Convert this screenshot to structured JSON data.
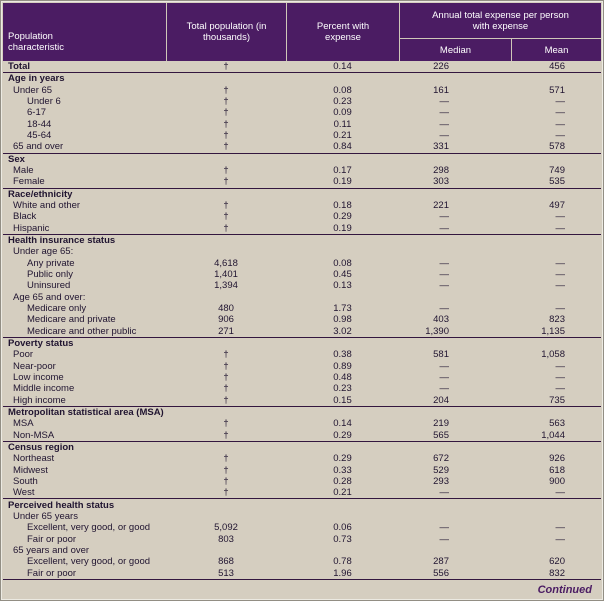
{
  "page": {
    "continued_label": "Continued"
  },
  "table": {
    "header": {
      "population_characteristic": "Population characteristic",
      "total_population": "Total population (in thousands)",
      "percent_with_expense": "Percent with expense",
      "expense_group": "Annual total expense per person with expense",
      "median": "Median",
      "mean": "Mean"
    },
    "symbols": {
      "suppressed": "—",
      "footnote_dagger": "†"
    },
    "colors": {
      "header_bg": "#4b1c63",
      "body_bg": "#d5cec0",
      "text": "#201430",
      "rule": "#33173f"
    },
    "sections": [
      {
        "rows": [
          {
            "type": "data",
            "bold": true,
            "indent": 0,
            "label": "Total",
            "total": "†",
            "percent": "0.14",
            "median": "226",
            "mean": "456"
          }
        ]
      },
      {
        "rows": [
          {
            "type": "section",
            "indent": 0,
            "label": "Age in years"
          },
          {
            "type": "data",
            "indent": 1,
            "label": "Under 65",
            "total": "†",
            "percent": "0.08",
            "median": "161",
            "mean": "571"
          },
          {
            "type": "data",
            "indent": 2,
            "label": "Under 6",
            "total": "†",
            "percent": "0.23",
            "median": "—",
            "mean": "—"
          },
          {
            "type": "data",
            "indent": 2,
            "label": "6-17",
            "total": "†",
            "percent": "0.09",
            "median": "—",
            "mean": "—"
          },
          {
            "type": "data",
            "indent": 2,
            "label": "18-44",
            "total": "†",
            "percent": "0.11",
            "median": "—",
            "mean": "—"
          },
          {
            "type": "data",
            "indent": 2,
            "label": "45-64",
            "total": "†",
            "percent": "0.21",
            "median": "—",
            "mean": "—"
          },
          {
            "type": "data",
            "indent": 1,
            "label": "65 and over",
            "total": "†",
            "percent": "0.84",
            "median": "331",
            "mean": "578"
          }
        ]
      },
      {
        "rows": [
          {
            "type": "section",
            "indent": 0,
            "label": "Sex"
          },
          {
            "type": "data",
            "indent": 1,
            "label": "Male",
            "total": "†",
            "percent": "0.17",
            "median": "298",
            "mean": "749"
          },
          {
            "type": "data",
            "indent": 1,
            "label": "Female",
            "total": "†",
            "percent": "0.19",
            "median": "303",
            "mean": "535"
          }
        ]
      },
      {
        "rows": [
          {
            "type": "section",
            "indent": 0,
            "label": "Race/ethnicity"
          },
          {
            "type": "data",
            "indent": 1,
            "label": "White and other",
            "total": "†",
            "percent": "0.18",
            "median": "221",
            "mean": "497"
          },
          {
            "type": "data",
            "indent": 1,
            "label": "Black",
            "total": "†",
            "percent": "0.29",
            "median": "—",
            "mean": "—"
          },
          {
            "type": "data",
            "indent": 1,
            "label": "Hispanic",
            "total": "†",
            "percent": "0.19",
            "median": "—",
            "mean": "—"
          }
        ]
      },
      {
        "rows": [
          {
            "type": "section",
            "indent": 0,
            "label": "Health insurance status"
          },
          {
            "type": "sub",
            "indent": 1,
            "label": "Under age 65:"
          },
          {
            "type": "data",
            "indent": 2,
            "label": "Any private",
            "total": "4,618",
            "percent": "0.08",
            "median": "—",
            "mean": "—"
          },
          {
            "type": "data",
            "indent": 2,
            "label": "Public only",
            "total": "1,401",
            "percent": "0.45",
            "median": "—",
            "mean": "—"
          },
          {
            "type": "data",
            "indent": 2,
            "label": "Uninsured",
            "total": "1,394",
            "percent": "0.13",
            "median": "—",
            "mean": "—"
          },
          {
            "type": "sub",
            "indent": 1,
            "label": "Age 65 and over:"
          },
          {
            "type": "data",
            "indent": 2,
            "label": "Medicare only",
            "total": "480",
            "percent": "1.73",
            "median": "—",
            "mean": "—"
          },
          {
            "type": "data",
            "indent": 2,
            "label": "Medicare and private",
            "total": "906",
            "percent": "0.98",
            "median": "403",
            "mean": "823"
          },
          {
            "type": "data",
            "indent": 2,
            "label": "Medicare and other public",
            "total": "271",
            "percent": "3.02",
            "median": "1,390",
            "mean": "1,135"
          }
        ]
      },
      {
        "rows": [
          {
            "type": "section",
            "indent": 0,
            "label": "Poverty status"
          },
          {
            "type": "data",
            "indent": 1,
            "label": "Poor",
            "total": "†",
            "percent": "0.38",
            "median": "581",
            "mean": "1,058"
          },
          {
            "type": "data",
            "indent": 1,
            "label": "Near-poor",
            "total": "†",
            "percent": "0.89",
            "median": "—",
            "mean": "—"
          },
          {
            "type": "data",
            "indent": 1,
            "label": "Low income",
            "total": "†",
            "percent": "0.48",
            "median": "—",
            "mean": "—"
          },
          {
            "type": "data",
            "indent": 1,
            "label": "Middle income",
            "total": "†",
            "percent": "0.23",
            "median": "—",
            "mean": "—"
          },
          {
            "type": "data",
            "indent": 1,
            "label": "High income",
            "total": "†",
            "percent": "0.15",
            "median": "204",
            "mean": "735"
          }
        ]
      },
      {
        "rows": [
          {
            "type": "section",
            "indent": 0,
            "label": "Metropolitan statistical area (MSA)"
          },
          {
            "type": "data",
            "indent": 1,
            "label": "MSA",
            "total": "†",
            "percent": "0.14",
            "median": "219",
            "mean": "563"
          },
          {
            "type": "data",
            "indent": 1,
            "label": "Non-MSA",
            "total": "†",
            "percent": "0.29",
            "median": "565",
            "mean": "1,044"
          }
        ]
      },
      {
        "rows": [
          {
            "type": "section",
            "indent": 0,
            "label": "Census region"
          },
          {
            "type": "data",
            "indent": 1,
            "label": "Northeast",
            "total": "†",
            "percent": "0.29",
            "median": "672",
            "mean": "926"
          },
          {
            "type": "data",
            "indent": 1,
            "label": "Midwest",
            "total": "†",
            "percent": "0.33",
            "median": "529",
            "mean": "618"
          },
          {
            "type": "data",
            "indent": 1,
            "label": "South",
            "total": "†",
            "percent": "0.28",
            "median": "293",
            "mean": "900"
          },
          {
            "type": "data",
            "indent": 1,
            "label": "West",
            "total": "†",
            "percent": "0.21",
            "median": "—",
            "mean": "—"
          }
        ]
      },
      {
        "rows": [
          {
            "type": "section",
            "indent": 0,
            "label": "Perceived health status"
          },
          {
            "type": "sub",
            "indent": 1,
            "label": "Under 65 years"
          },
          {
            "type": "data",
            "indent": 2,
            "label": "Excellent, very good, or good",
            "total": "5,092",
            "percent": "0.06",
            "median": "—",
            "mean": "—"
          },
          {
            "type": "data",
            "indent": 2,
            "label": "Fair or poor",
            "total": "803",
            "percent": "0.73",
            "median": "—",
            "mean": "—"
          },
          {
            "type": "sub",
            "indent": 1,
            "label": "65 years and over"
          },
          {
            "type": "data",
            "indent": 2,
            "label": "Excellent, very good, or good",
            "total": "868",
            "percent": "0.78",
            "median": "287",
            "mean": "620"
          },
          {
            "type": "data",
            "indent": 2,
            "label": "Fair or poor",
            "total": "513",
            "percent": "1.96",
            "median": "556",
            "mean": "832"
          }
        ]
      }
    ]
  }
}
